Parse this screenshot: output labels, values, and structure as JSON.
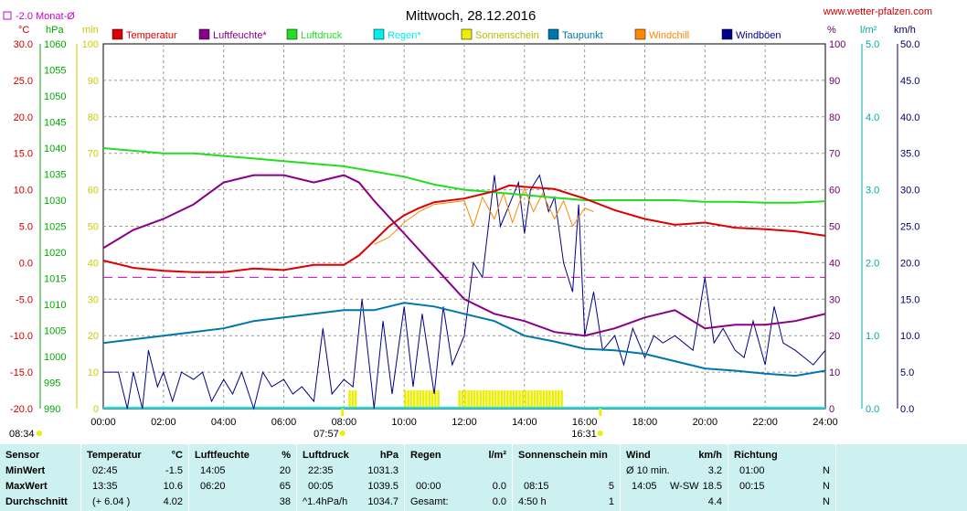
{
  "chart_data": {
    "type": "line",
    "title": "Mittwoch, 28.12.2016",
    "website": "www.wetter-pfalzen.com",
    "grid": true,
    "legend_placement": "top",
    "monthly_avg": {
      "label": "-2.0 Monat-Ø",
      "value": -2.0,
      "color": "#cc00cc"
    },
    "axes": {
      "temperature": {
        "unit": "°C",
        "min": -20,
        "max": 30,
        "step": 5,
        "color": "#cc0000",
        "ticks": [
          "30.0",
          "25.0",
          "20.0",
          "15.0",
          "10.0",
          "5.0",
          "0.0",
          "-5.0",
          "-10.0",
          "-15.0",
          "-20.0"
        ]
      },
      "pressure": {
        "unit": "hPa",
        "min": 990,
        "max": 1060,
        "step": 5,
        "color": "#00aa00",
        "ticks": [
          "1060",
          "1055",
          "1050",
          "1045",
          "1040",
          "1035",
          "1030",
          "1025",
          "1020",
          "1015",
          "1010",
          "1005",
          "1000",
          "995",
          "990"
        ]
      },
      "sunshine": {
        "unit": "min",
        "min": 0,
        "max": 100,
        "step": 10,
        "color": "#cccc00",
        "ticks": [
          "100",
          "90",
          "80",
          "70",
          "60",
          "50",
          "40",
          "30",
          "20",
          "10",
          "0"
        ]
      },
      "humidity": {
        "unit": "%",
        "min": 0,
        "max": 100,
        "step": 10,
        "color": "#660066",
        "ticks": [
          "100",
          "90",
          "80",
          "70",
          "60",
          "50",
          "40",
          "30",
          "20",
          "10",
          "0"
        ]
      },
      "rain": {
        "unit": "l/m²",
        "min": 0,
        "max": 5,
        "color": "#00aaaa",
        "ticks": [
          "5.0",
          "4.0",
          "3.0",
          "2.0",
          "1.0",
          "0.0"
        ]
      },
      "wind": {
        "unit": "km/h",
        "min": 0,
        "max": 50,
        "step": 5,
        "color": "#000066",
        "ticks": [
          "50.0",
          "45.0",
          "40.0",
          "35.0",
          "30.0",
          "25.0",
          "20.0",
          "15.0",
          "10.0",
          "5.0",
          "0.0"
        ]
      },
      "time": {
        "ticks": [
          "00:00",
          "02:00",
          "04:00",
          "06:00",
          "08:00",
          "10:00",
          "12:00",
          "14:00",
          "16:00",
          "18:00",
          "20:00",
          "22:00",
          "24:00"
        ]
      }
    },
    "sunrise": "08:34",
    "sun_time_marks": [
      {
        "label": "07:57",
        "hour": 7.95
      },
      {
        "label": "16:31",
        "hour": 16.52
      }
    ],
    "legend": [
      {
        "name": "Temperatur",
        "color": "#dd0000"
      },
      {
        "name": "Luftfeuchte*",
        "color": "#880088"
      },
      {
        "name": "Luftdruck",
        "color": "#22dd22"
      },
      {
        "name": "Regen*",
        "color": "#00eeee"
      },
      {
        "name": "Sonnenschein",
        "color": "#eeee00"
      },
      {
        "name": "Taupunkt",
        "color": "#0077aa"
      },
      {
        "name": "Windchill",
        "color": "#ff8800"
      },
      {
        "name": "Windböen",
        "color": "#000088"
      }
    ],
    "series": {
      "temperature": {
        "x": [
          0,
          1,
          2,
          3,
          4,
          5,
          6,
          7,
          8,
          8.5,
          9,
          9.5,
          10,
          10.5,
          11,
          12,
          13,
          13.5,
          14,
          15,
          16,
          17,
          18,
          19,
          20,
          21,
          22,
          23,
          24
        ],
        "y": [
          0.3,
          -0.7,
          -1.1,
          -1.3,
          -1.3,
          -0.8,
          -1.0,
          -0.3,
          -0.3,
          1.0,
          3.0,
          5.0,
          6.5,
          7.5,
          8.3,
          8.8,
          9.8,
          10.6,
          10.4,
          10.1,
          8.8,
          7.2,
          6.0,
          5.2,
          5.5,
          4.8,
          4.6,
          4.3,
          3.7
        ]
      },
      "humidity": {
        "x": [
          0,
          1,
          2,
          3,
          4,
          5,
          6,
          7,
          8,
          8.5,
          9,
          10,
          11,
          12,
          13,
          14,
          15,
          16,
          17,
          18,
          19,
          20,
          21,
          22,
          23,
          24
        ],
        "y": [
          44,
          49,
          52,
          56,
          62,
          64,
          64,
          62,
          64,
          62,
          57,
          48,
          39,
          30,
          26,
          24,
          21,
          20,
          22,
          25,
          27,
          22,
          23,
          23,
          24,
          26
        ]
      },
      "pressure": {
        "x": [
          0,
          1,
          2,
          3,
          4,
          5,
          6,
          7,
          8,
          9,
          10,
          11,
          12,
          13,
          14,
          15,
          16,
          17,
          18,
          19,
          20,
          21,
          22,
          23,
          24
        ],
        "y": [
          1040,
          1039.5,
          1039,
          1039,
          1038.5,
          1038,
          1037.5,
          1037,
          1036.5,
          1035.5,
          1034.5,
          1033,
          1032,
          1031.5,
          1031,
          1030.5,
          1030,
          1030,
          1030,
          1030,
          1029.7,
          1029.7,
          1029.5,
          1029.5,
          1029.8
        ]
      },
      "dew_point": {
        "x": [
          0,
          1,
          2,
          3,
          4,
          5,
          6,
          7,
          8,
          9,
          10,
          11,
          12,
          13,
          14,
          15,
          16,
          17,
          18,
          19,
          20,
          21,
          22,
          23,
          24
        ],
        "y": [
          -11,
          -10.5,
          -10,
          -9.5,
          -9,
          -8,
          -7.5,
          -7,
          -6.5,
          -6.5,
          -5.5,
          -6,
          -7,
          -8,
          -10,
          -10.8,
          -11.8,
          -12,
          -12.5,
          -13.5,
          -14.5,
          -14.8,
          -15.2,
          -15.5,
          -14.8
        ]
      },
      "windchill": {
        "x": [
          9,
          9.5,
          10,
          10.5,
          11,
          12,
          12.3,
          12.6,
          13,
          13.3,
          13.6,
          14,
          14.3,
          14.6,
          15,
          15.3,
          15.6,
          16,
          16.3
        ],
        "y": [
          2.5,
          3.5,
          5.5,
          7.0,
          8.0,
          8.5,
          5.0,
          9.0,
          6.0,
          9.5,
          5.5,
          10.2,
          7.0,
          9.5,
          6.0,
          8.5,
          5.0,
          7.5,
          7.0
        ]
      },
      "wind_gusts": {
        "x": [
          0,
          0.5,
          0.8,
          1,
          1.3,
          1.5,
          1.8,
          2,
          2.3,
          2.6,
          3,
          3.3,
          3.6,
          4,
          4.3,
          4.6,
          5,
          5.3,
          5.6,
          6,
          6.3,
          6.6,
          7,
          7.3,
          7.6,
          8,
          8.3,
          8.6,
          9,
          9.3,
          9.6,
          10,
          10.3,
          10.6,
          11,
          11.3,
          11.6,
          12,
          12.3,
          12.6,
          13,
          13.2,
          13.5,
          13.8,
          14,
          14.2,
          14.5,
          14.8,
          15,
          15.3,
          15.6,
          15.8,
          16,
          16.3,
          16.6,
          17,
          17.3,
          17.6,
          18,
          18.3,
          18.6,
          19,
          19.3,
          19.6,
          20,
          20.3,
          20.6,
          21,
          21.3,
          21.6,
          22,
          22.3,
          22.6,
          23,
          23.3,
          23.6,
          24
        ],
        "y": [
          5,
          5,
          0,
          5,
          0,
          8,
          3,
          5,
          1,
          5,
          4,
          5,
          1,
          4,
          2,
          5,
          0,
          5,
          3,
          4,
          2,
          3,
          1,
          11,
          2,
          4,
          3,
          15,
          0,
          12,
          2,
          14,
          3,
          13,
          2,
          14,
          6,
          10,
          20,
          18,
          32,
          25,
          28,
          31,
          24,
          30,
          32,
          27,
          29,
          20,
          16,
          28,
          10,
          16,
          8,
          10,
          6,
          11,
          7,
          10,
          9,
          10,
          9,
          8,
          18,
          9,
          11,
          8,
          7,
          12,
          6,
          14,
          9,
          8,
          7,
          6,
          8
        ]
      },
      "sunshine_bars": [
        {
          "from": 8.15,
          "to": 8.4
        },
        {
          "from": 10.0,
          "to": 11.15
        },
        {
          "from": 11.8,
          "to": 15.2
        }
      ]
    }
  },
  "stats": {
    "cols": [
      {
        "title": "Sensor",
        "rows": [
          "MinWert",
          "MaxWert",
          "Durchschnitt"
        ]
      },
      {
        "title": "Temperatur",
        "unit": "°C",
        "times": [
          "02:45",
          "13:35",
          "(+ 6.04 )"
        ],
        "values": [
          "-1.5",
          "10.6",
          "4.02"
        ]
      },
      {
        "title": "Luftfeuchte",
        "unit": "%",
        "times": [
          "14:05",
          "06:20",
          ""
        ],
        "values": [
          "20",
          "65",
          "38"
        ]
      },
      {
        "title": "Luftdruck",
        "unit": "hPa",
        "times": [
          "22:35",
          "00:05",
          "^1.4hPa/h"
        ],
        "values": [
          "1031.3",
          "1039.5",
          "1034.7"
        ]
      },
      {
        "title": "Regen",
        "unit": "l/m²",
        "times": [
          "",
          "00:00",
          "Gesamt:"
        ],
        "values": [
          "",
          "0.0",
          "0.0"
        ]
      },
      {
        "title": "Sonnenschein min",
        "unit": "",
        "times": [
          "",
          "08:15",
          "4:50 h"
        ],
        "values": [
          "",
          "5",
          "1"
        ]
      },
      {
        "title": "Wind",
        "unit": "km/h",
        "times": [
          "Ø 10 min.",
          "14:05",
          ""
        ],
        "mids": [
          "",
          "W-SW",
          ""
        ],
        "values": [
          "3.2",
          "18.5",
          "4.4"
        ]
      },
      {
        "title": "Richtung",
        "unit": "",
        "times": [
          "01:00",
          "00:15",
          ""
        ],
        "values": [
          "N",
          "N",
          "N"
        ]
      }
    ]
  }
}
